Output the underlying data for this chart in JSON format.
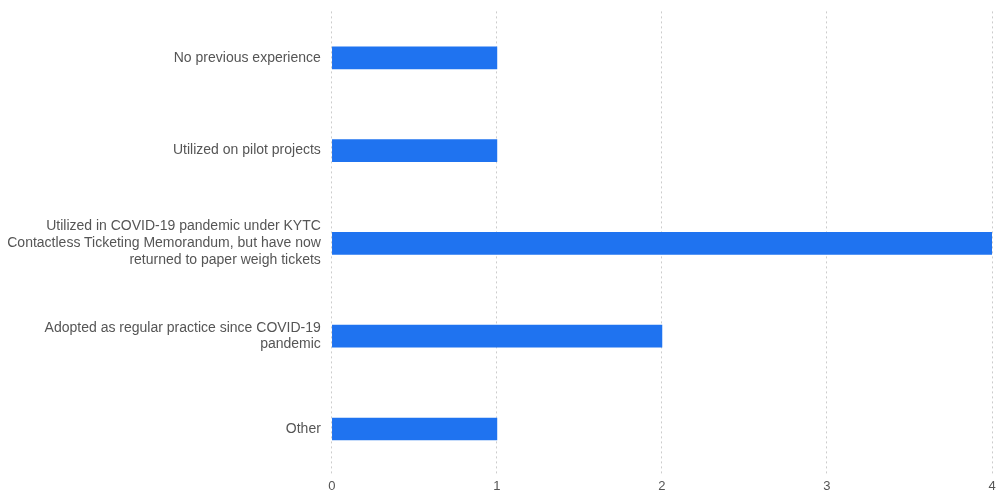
{
  "chart_data": {
    "type": "bar",
    "orientation": "horizontal",
    "categories": [
      "No previous experience",
      "Utilized on pilot projects",
      "Utilized in COVID-19 pandemic under KYTC Contactless Ticketing Memorandum, but have now returned to paper weigh tickets",
      "Adopted as regular practice since COVID-19 pandemic",
      "Other"
    ],
    "values": [
      1,
      1,
      4,
      2,
      1
    ],
    "color": "#1f73f0",
    "xlim": [
      0,
      4
    ],
    "xticks": [
      0,
      1,
      2,
      3,
      4
    ],
    "grid": "x",
    "legend": false
  }
}
